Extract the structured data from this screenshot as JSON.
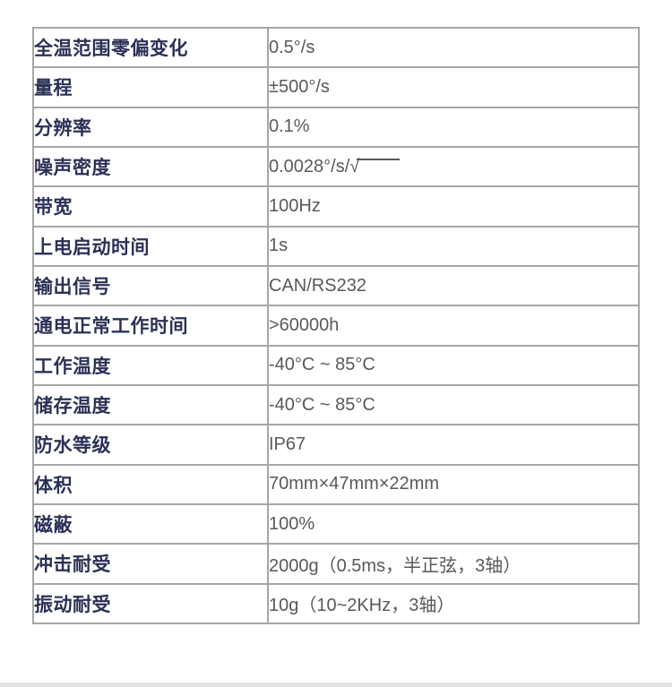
{
  "page": {
    "background": "#ffffff"
  },
  "colors": {
    "label_text": "#2b3156",
    "value_text": "#58595c",
    "table_border": "#a6a6a6",
    "bottom_strip": "#e3e3e3"
  },
  "table": {
    "rows": [
      {
        "label": "全温范围零偏变化",
        "value": "0.5°/s"
      },
      {
        "label": "量程",
        "value": "±500°/s"
      },
      {
        "label": "分辨率",
        "value": "0.1%"
      },
      {
        "label": "噪声密度",
        "value": "0.0028°/s/√"
      },
      {
        "label": "带宽",
        "value": "100Hz"
      },
      {
        "label": "上电启动时间",
        "value": "1s"
      },
      {
        "label": "输出信号",
        "value": "CAN/RS232"
      },
      {
        "label": "通电正常工作时间",
        "value": ">60000h"
      },
      {
        "label": "工作温度",
        "value": "-40°C ~ 85°C"
      },
      {
        "label": "储存温度",
        "value": "-40°C ~ 85°C"
      },
      {
        "label": "防水等级",
        "value": "IP67"
      },
      {
        "label": "体积",
        "value": "70mm×47mm×22mm"
      },
      {
        "label": "磁蔽",
        "value": "100%"
      },
      {
        "label": "冲击耐受",
        "value": "2000g（0.5ms，半正弦，3轴）"
      },
      {
        "label": "振动耐受",
        "value": "10g（10~2KHz，3轴）"
      }
    ]
  }
}
